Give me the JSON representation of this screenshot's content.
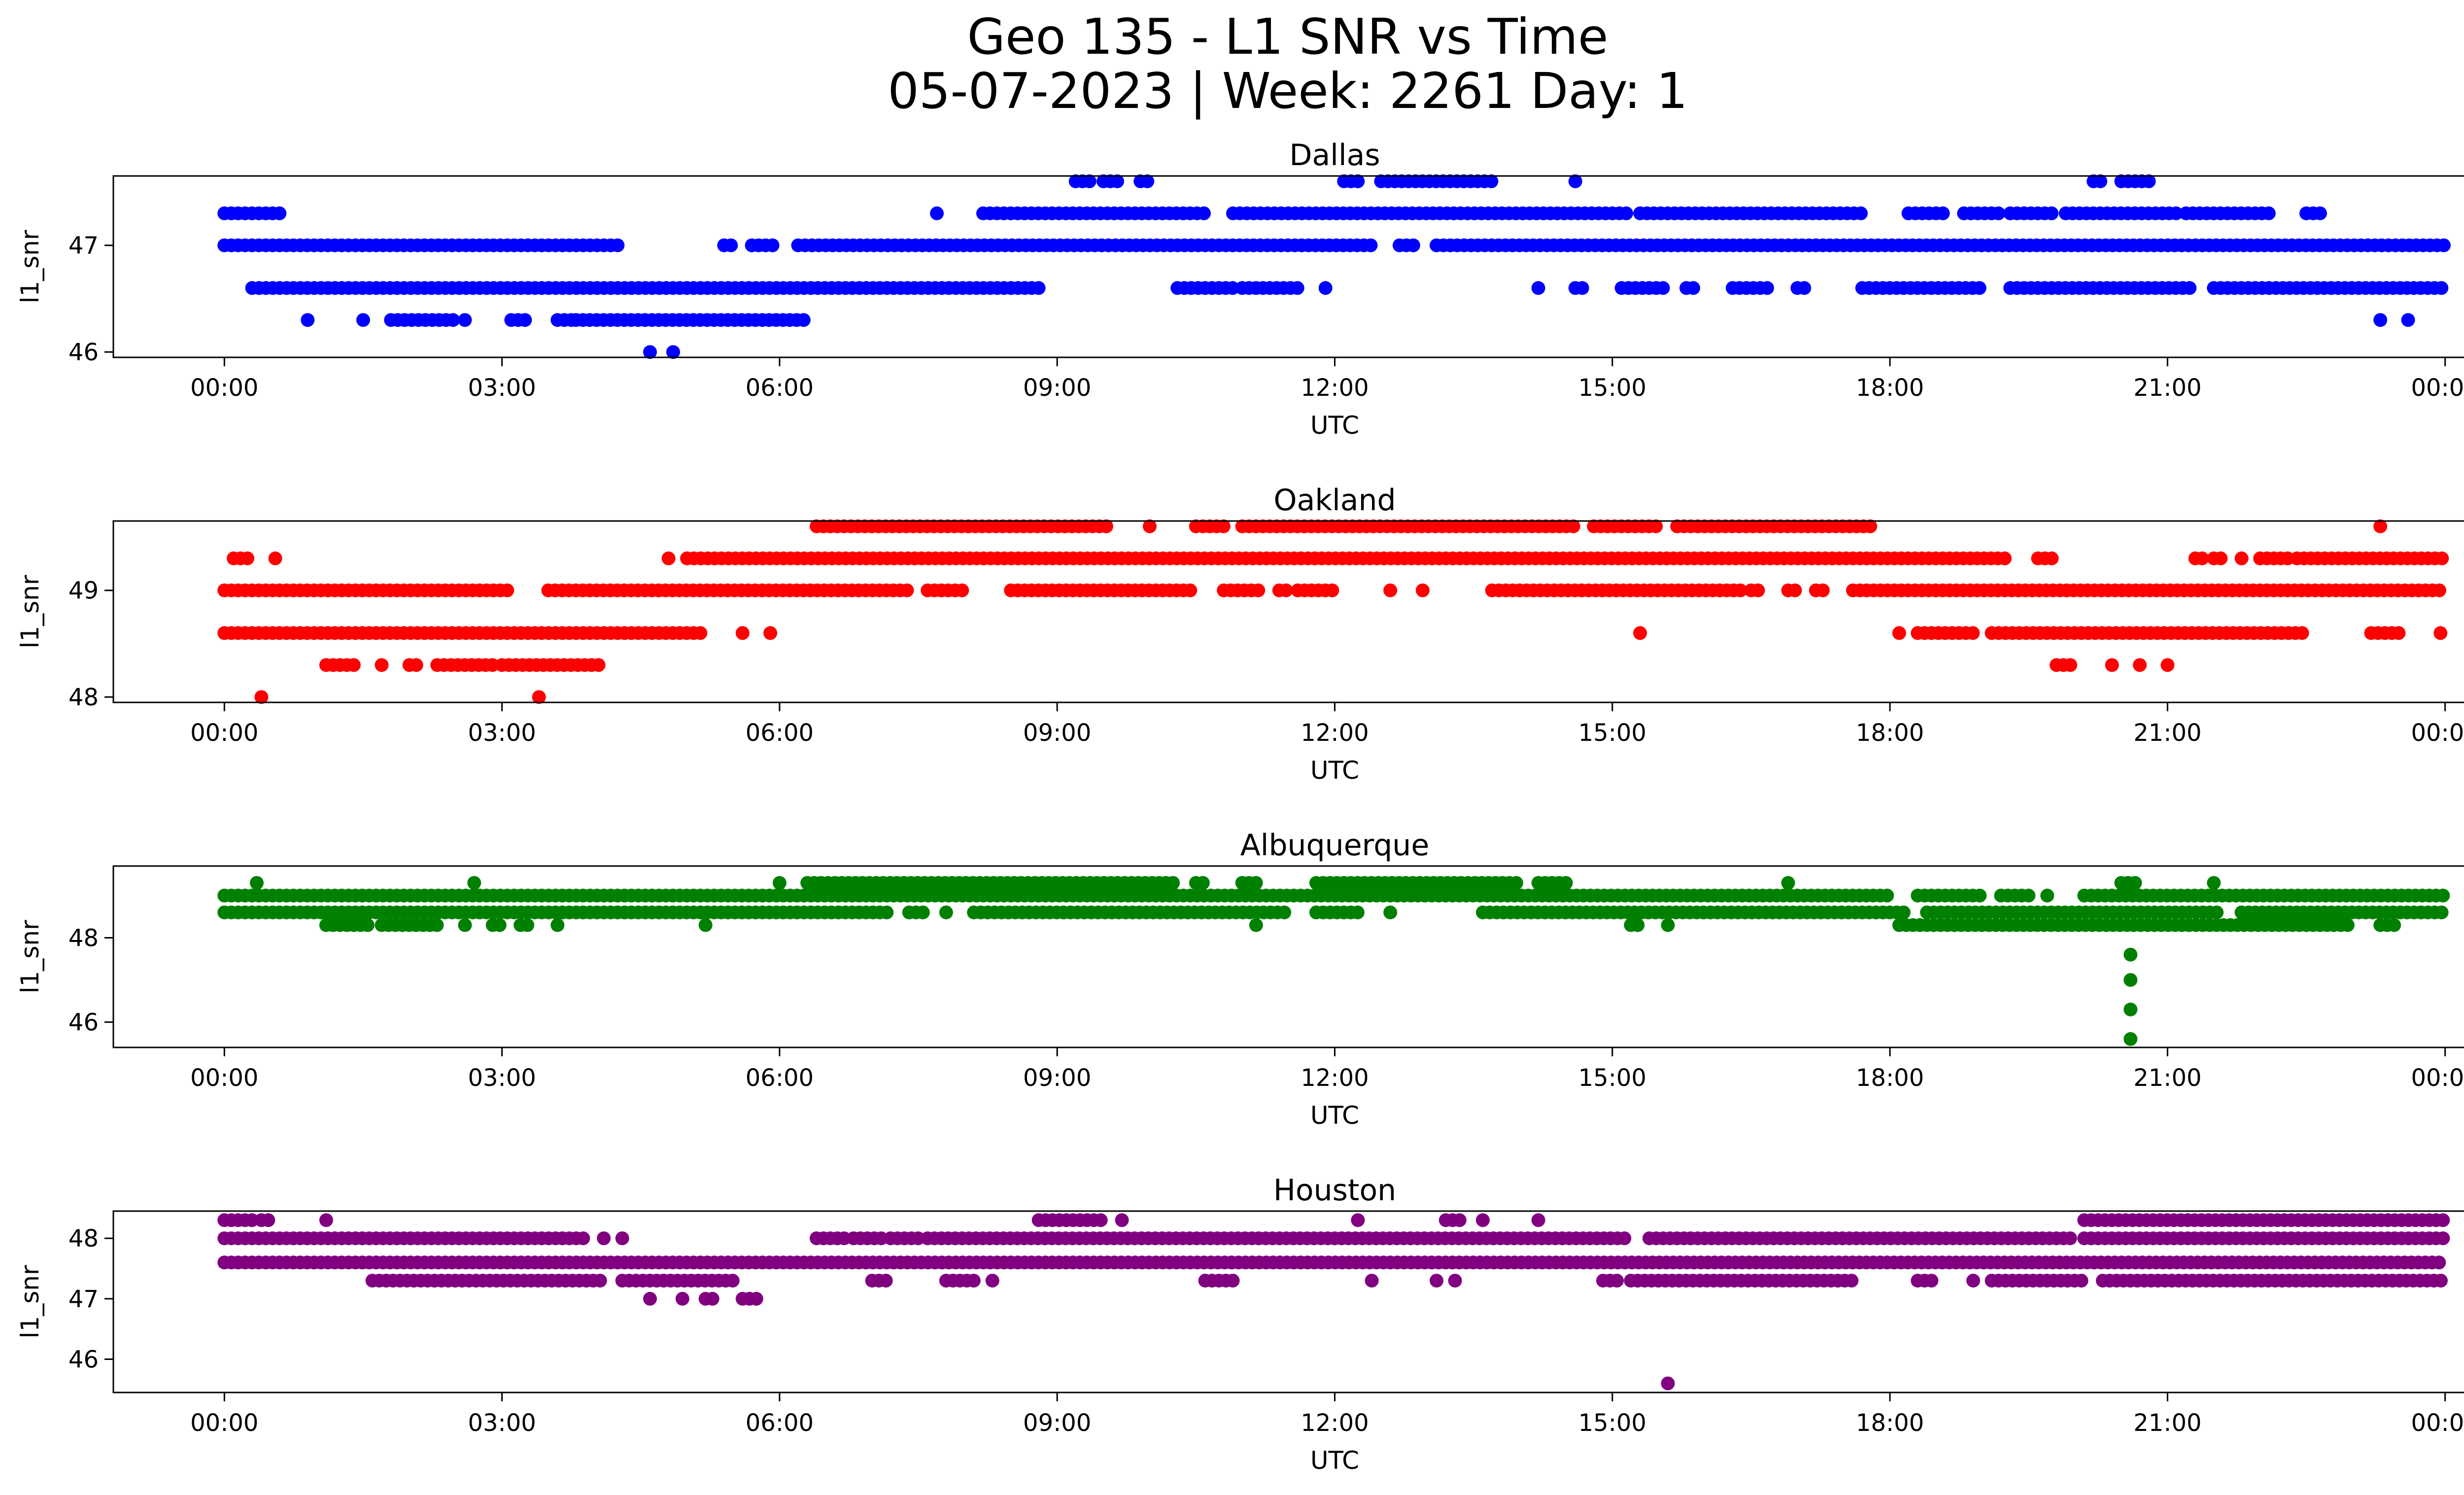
{
  "figure": {
    "title_line1": "Geo 135 - L1 SNR vs Time",
    "title_line2": "05-07-2023 | Week: 2261 Day: 1"
  },
  "chart_data": [
    {
      "type": "scatter",
      "title": "Dallas",
      "xlabel": "UTC",
      "ylabel": "l1_snr",
      "color": "#0000ff",
      "xlim": [
        "2023-05-07 00:00",
        "2023-05-08 00:00"
      ],
      "ylim": [
        45.95,
        47.65
      ],
      "xticks": [
        "00:00",
        "03:00",
        "06:00",
        "09:00",
        "12:00",
        "15:00",
        "18:00",
        "21:00",
        "00:00"
      ],
      "yticks": [
        46,
        47
      ],
      "series": [
        {
          "y": 47.0,
          "ranges": [
            [
              0.0,
              4.3
            ],
            [
              5.4,
              5.5
            ],
            [
              5.7,
              5.95
            ],
            [
              6.2,
              12.4
            ],
            [
              12.7,
              12.85
            ],
            [
              13.1,
              24.0
            ]
          ]
        },
        {
          "y": 46.6,
          "ranges": [
            [
              0.3,
              8.8
            ],
            [
              10.3,
              10.9
            ],
            [
              11.0,
              11.6
            ],
            [
              11.9,
              11.95
            ],
            [
              14.2,
              14.25
            ],
            [
              14.6,
              14.7
            ],
            [
              15.1,
              15.6
            ],
            [
              15.8,
              15.9
            ],
            [
              16.3,
              16.7
            ],
            [
              17.0,
              17.1
            ],
            [
              17.7,
              19.0
            ],
            [
              19.3,
              21.3
            ],
            [
              21.5,
              24.0
            ]
          ]
        },
        {
          "y": 47.3,
          "ranges": [
            [
              0.0,
              0.6
            ],
            [
              7.7,
              7.75
            ],
            [
              8.2,
              10.6
            ],
            [
              10.9,
              15.2
            ],
            [
              15.3,
              17.7
            ],
            [
              18.2,
              18.6
            ],
            [
              18.8,
              19.2
            ],
            [
              19.3,
              19.8
            ],
            [
              19.9,
              21.1
            ],
            [
              21.2,
              22.1
            ],
            [
              22.5,
              22.7
            ]
          ]
        },
        {
          "y": 47.6,
          "ranges": [
            [
              9.2,
              9.4
            ],
            [
              9.5,
              9.65
            ],
            [
              9.9,
              10.0
            ],
            [
              12.1,
              12.3
            ],
            [
              12.5,
              13.7
            ],
            [
              14.6,
              14.65
            ],
            [
              20.2,
              20.3
            ],
            [
              20.5,
              20.8
            ]
          ]
        },
        {
          "y": 46.3,
          "ranges": [
            [
              0.9,
              0.95
            ],
            [
              1.5,
              1.55
            ],
            [
              1.8,
              2.5
            ],
            [
              2.6,
              2.65
            ],
            [
              3.1,
              3.3
            ],
            [
              3.6,
              3.75
            ],
            [
              3.8,
              6.3
            ],
            [
              23.3,
              23.35
            ],
            [
              23.6,
              23.65
            ]
          ]
        },
        {
          "y": 46.0,
          "ranges": [
            [
              4.6,
              4.65
            ],
            [
              4.85,
              4.9
            ]
          ]
        }
      ]
    },
    {
      "type": "scatter",
      "title": "Oakland",
      "xlabel": "UTC",
      "ylabel": "l1_snr",
      "color": "#ff0000",
      "xlim": [
        "2023-05-07 00:00",
        "2023-05-08 00:00"
      ],
      "ylim": [
        47.95,
        49.65
      ],
      "xticks": [
        "00:00",
        "03:00",
        "06:00",
        "09:00",
        "12:00",
        "15:00",
        "18:00",
        "21:00",
        "00:00"
      ],
      "yticks": [
        48,
        49
      ],
      "series": [
        {
          "y": 49.0,
          "ranges": [
            [
              0.0,
              3.1
            ],
            [
              3.5,
              7.4
            ],
            [
              7.6,
              8.0
            ],
            [
              8.5,
              10.5
            ],
            [
              10.8,
              11.2
            ],
            [
              11.4,
              11.5
            ],
            [
              11.6,
              12.0
            ],
            [
              12.6,
              12.65
            ],
            [
              12.95,
              13.0
            ],
            [
              13.7,
              16.4
            ],
            [
              16.5,
              16.6
            ],
            [
              16.9,
              17.0
            ],
            [
              17.2,
              17.3
            ],
            [
              17.6,
              24.0
            ]
          ]
        },
        {
          "y": 48.6,
          "ranges": [
            [
              0.0,
              5.2
            ],
            [
              5.6,
              5.65
            ],
            [
              5.9,
              5.95
            ],
            [
              15.3,
              15.35
            ],
            [
              18.1,
              18.15
            ],
            [
              18.3,
              18.9
            ],
            [
              19.1,
              22.5
            ],
            [
              23.2,
              23.5
            ],
            [
              23.95,
              24.0
            ]
          ]
        },
        {
          "y": 49.3,
          "ranges": [
            [
              0.1,
              0.3
            ],
            [
              0.55,
              0.6
            ],
            [
              4.8,
              4.85
            ],
            [
              5.0,
              19.3
            ],
            [
              19.6,
              19.8
            ],
            [
              21.3,
              21.4
            ],
            [
              21.5,
              21.6
            ],
            [
              21.8,
              21.85
            ],
            [
              22.0,
              22.3
            ],
            [
              22.4,
              24.0
            ]
          ]
        },
        {
          "y": 49.6,
          "ranges": [
            [
              6.4,
              9.6
            ],
            [
              10.0,
              10.05
            ],
            [
              10.5,
              10.8
            ],
            [
              11.0,
              14.6
            ],
            [
              14.8,
              15.5
            ],
            [
              15.7,
              17.8
            ],
            [
              23.3,
              23.35
            ]
          ]
        },
        {
          "y": 48.3,
          "ranges": [
            [
              1.1,
              1.4
            ],
            [
              1.7,
              1.75
            ],
            [
              2.0,
              2.1
            ],
            [
              2.3,
              2.9
            ],
            [
              3.0,
              4.1
            ],
            [
              19.8,
              20.0
            ],
            [
              20.4,
              20.45
            ],
            [
              20.7,
              20.75
            ],
            [
              21.0,
              21.05
            ]
          ]
        },
        {
          "y": 48.0,
          "ranges": [
            [
              0.4,
              0.45
            ],
            [
              3.4,
              3.45
            ]
          ]
        }
      ]
    },
    {
      "type": "scatter",
      "title": "Albuquerque",
      "xlabel": "UTC",
      "ylabel": "l1_snr",
      "color": "#008000",
      "xlim": [
        "2023-05-07 00:00",
        "2023-05-08 00:00"
      ],
      "ylim": [
        45.4,
        49.7
      ],
      "xticks": [
        "00:00",
        "03:00",
        "06:00",
        "09:00",
        "12:00",
        "15:00",
        "18:00",
        "21:00",
        "00:00"
      ],
      "yticks": [
        46,
        48
      ],
      "series": [
        {
          "y": 49.0,
          "ranges": [
            [
              0.0,
              18.0
            ],
            [
              18.3,
              19.0
            ],
            [
              19.2,
              19.5
            ],
            [
              19.7,
              19.75
            ],
            [
              20.1,
              24.0
            ]
          ]
        },
        {
          "y": 48.6,
          "ranges": [
            [
              0.0,
              7.2
            ],
            [
              7.4,
              7.6
            ],
            [
              7.8,
              7.85
            ],
            [
              8.1,
              11.5
            ],
            [
              11.8,
              12.3
            ],
            [
              12.6,
              12.65
            ],
            [
              13.6,
              18.2
            ],
            [
              18.4,
              21.6
            ],
            [
              21.8,
              24.0
            ]
          ]
        },
        {
          "y": 49.3,
          "ranges": [
            [
              0.35,
              0.4
            ],
            [
              2.7,
              2.75
            ],
            [
              6.0,
              6.05
            ],
            [
              6.3,
              10.3
            ],
            [
              10.5,
              10.6
            ],
            [
              11.0,
              11.2
            ],
            [
              11.8,
              14.0
            ],
            [
              14.2,
              14.5
            ],
            [
              16.9,
              16.95
            ],
            [
              20.5,
              20.7
            ],
            [
              21.5,
              21.55
            ]
          ]
        },
        {
          "y": 48.3,
          "ranges": [
            [
              1.1,
              1.6
            ],
            [
              1.7,
              2.3
            ],
            [
              2.6,
              2.65
            ],
            [
              2.9,
              3.0
            ],
            [
              3.2,
              3.3
            ],
            [
              3.6,
              3.65
            ],
            [
              5.2,
              5.25
            ],
            [
              11.15,
              11.2
            ],
            [
              15.2,
              15.3
            ],
            [
              15.6,
              15.65
            ],
            [
              18.1,
              23.0
            ],
            [
              23.3,
              23.45
            ]
          ]
        },
        {
          "y": 47.6,
          "ranges": [
            [
              20.6,
              20.65
            ]
          ]
        },
        {
          "y": 47.0,
          "ranges": [
            [
              20.6,
              20.65
            ]
          ]
        },
        {
          "y": 46.3,
          "ranges": [
            [
              20.6,
              20.65
            ]
          ]
        },
        {
          "y": 45.6,
          "ranges": [
            [
              20.6,
              20.65
            ]
          ]
        }
      ]
    },
    {
      "type": "scatter",
      "title": "Houston",
      "xlabel": "UTC",
      "ylabel": "l1_snr",
      "color": "#800080",
      "xlim": [
        "2023-05-07 00:00",
        "2023-05-08 00:00"
      ],
      "ylim": [
        45.45,
        48.45
      ],
      "xticks": [
        "00:00",
        "03:00",
        "06:00",
        "09:00",
        "12:00",
        "15:00",
        "18:00",
        "21:00",
        "00:00"
      ],
      "yticks": [
        46,
        47,
        48
      ],
      "series": [
        {
          "y": 47.6,
          "ranges": [
            [
              0.0,
              24.0
            ]
          ]
        },
        {
          "y": 48.0,
          "ranges": [
            [
              0.0,
              3.9
            ],
            [
              4.1,
              4.15
            ],
            [
              4.3,
              4.35
            ],
            [
              6.4,
              6.7
            ],
            [
              6.8,
              7.1
            ],
            [
              7.2,
              7.5
            ],
            [
              7.6,
              15.2
            ],
            [
              15.4,
              20.0
            ],
            [
              20.1,
              24.0
            ]
          ]
        },
        {
          "y": 47.3,
          "ranges": [
            [
              1.6,
              4.1
            ],
            [
              4.3,
              5.5
            ],
            [
              7.0,
              7.2
            ],
            [
              7.8,
              8.1
            ],
            [
              8.3,
              8.35
            ],
            [
              10.6,
              10.9
            ],
            [
              12.4,
              12.45
            ],
            [
              13.1,
              13.15
            ],
            [
              13.3,
              13.35
            ],
            [
              14.9,
              15.1
            ],
            [
              15.2,
              17.6
            ],
            [
              18.3,
              18.5
            ],
            [
              18.9,
              18.95
            ],
            [
              19.1,
              20.1
            ],
            [
              20.3,
              24.0
            ]
          ]
        },
        {
          "y": 48.3,
          "ranges": [
            [
              0.0,
              0.3
            ],
            [
              0.4,
              0.5
            ],
            [
              1.1,
              1.15
            ],
            [
              8.8,
              9.5
            ],
            [
              9.7,
              9.75
            ],
            [
              12.25,
              12.3
            ],
            [
              13.2,
              13.4
            ],
            [
              13.6,
              13.65
            ],
            [
              14.2,
              14.25
            ],
            [
              20.1,
              24.0
            ]
          ]
        },
        {
          "y": 47.0,
          "ranges": [
            [
              4.6,
              4.65
            ],
            [
              4.95,
              5.0
            ],
            [
              5.2,
              5.3
            ],
            [
              5.6,
              5.8
            ]
          ]
        },
        {
          "y": 45.6,
          "ranges": [
            [
              15.6,
              15.65
            ]
          ]
        }
      ]
    }
  ]
}
